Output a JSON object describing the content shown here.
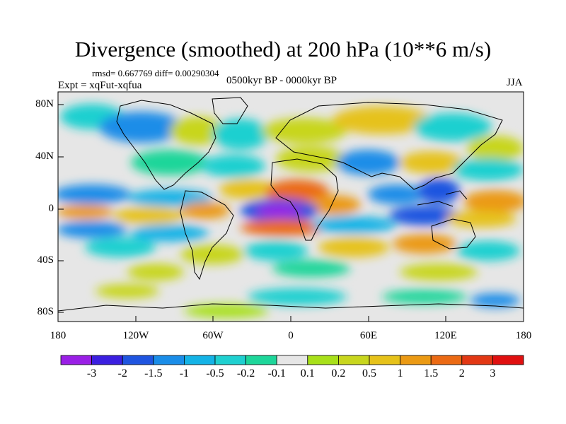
{
  "title": "Divergence (smoothed) at 200 hPa (10**6 m/s)",
  "stats_line": "rmsd= 0.667769 diff= 0.00290304",
  "experiment_label": "Expt = xqFut-xqfua",
  "period_label": "0500kyr BP - 0000kyr BP",
  "season_label": "JJA",
  "axes": {
    "lat_ticks": [
      "80N",
      "40N",
      "0",
      "40S",
      "80S"
    ],
    "lon_ticks": [
      "180",
      "120W",
      "60W",
      "0",
      "60E",
      "120E",
      "180"
    ]
  },
  "colorbar": {
    "labels": [
      "-3",
      "-2",
      "-1.5",
      "-1",
      "-0.5",
      "-0.2",
      "-0.1",
      "0.1",
      "0.2",
      "0.5",
      "1",
      "1.5",
      "2",
      "3"
    ],
    "colors": [
      "#9a1fe6",
      "#3b1fe0",
      "#1f55e0",
      "#1a8de8",
      "#14b3e6",
      "#1fd0d0",
      "#1ed69a",
      "#e6e6e6",
      "#a8e01a",
      "#c8d61e",
      "#e6c21a",
      "#eb9a14",
      "#eb6a14",
      "#e23814",
      "#e01010"
    ]
  },
  "colors": {
    "background": "#ffffff",
    "neutral": "#e6e6e6",
    "coast": "#000000"
  }
}
